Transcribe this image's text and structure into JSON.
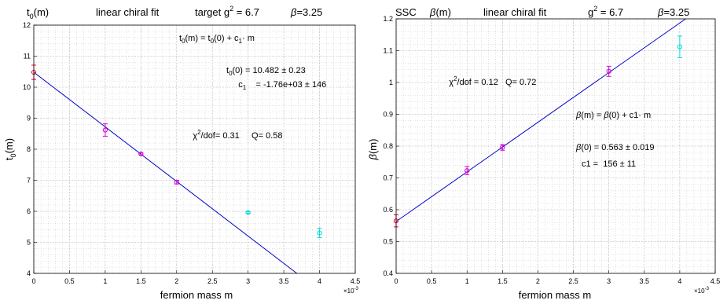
{
  "chart_data": [
    {
      "type": "scatter",
      "title_parts": [
        "t",
        "0",
        "(m)",
        "linear chiral fit",
        "target g",
        "2",
        " = 6.7",
        "β",
        "=3.25"
      ],
      "xlabel": "fermion mass  m",
      "ylabel_parts": [
        "t",
        "0",
        "(m)"
      ],
      "x_exponent": "×10",
      "x_exponent_power": "-3",
      "xlim": [
        0,
        4.5
      ],
      "ylim": [
        4,
        12
      ],
      "x_ticks": [
        0,
        0.5,
        1,
        1.5,
        2,
        2.5,
        3,
        3.5,
        4,
        4.5
      ],
      "x_tick_labels": [
        "0",
        "0.5",
        "1",
        "1.5",
        "2",
        "2.5",
        "3",
        "3.5",
        "4",
        "4.5"
      ],
      "y_ticks": [
        4,
        5,
        6,
        7,
        8,
        9,
        10,
        11,
        12
      ],
      "y_tick_labels": [
        "4",
        "5",
        "6",
        "7",
        "8",
        "9",
        "10",
        "11",
        "12"
      ],
      "grid": true,
      "minor_grid": true,
      "points": [
        {
          "x": 0,
          "y": 10.48,
          "err": 0.23,
          "color": "#e8002a"
        },
        {
          "x": 1,
          "y": 8.62,
          "err": 0.2,
          "color": "#d400d4"
        },
        {
          "x": 1.5,
          "y": 7.85,
          "err": 0.03,
          "color": "#d400d4"
        },
        {
          "x": 2,
          "y": 6.94,
          "err": 0.06,
          "color": "#d400d4"
        },
        {
          "x": 3,
          "y": 5.96,
          "err": 0.03,
          "color": "#00d8d8"
        },
        {
          "x": 4,
          "y": 5.3,
          "err": 0.15,
          "color": "#00d8d8"
        }
      ],
      "fit_line": {
        "intercept": 10.482,
        "slope": -1.76,
        "color": "#0000cc"
      },
      "annotations": {
        "formula": [
          "t",
          "0",
          "(m)  =  t",
          "0",
          "(0) + c",
          "1",
          "· m"
        ],
        "param1": [
          "t",
          "0",
          "(0) = 10.482 ± 0.23"
        ],
        "param2": [
          "c",
          "1",
          "    = -1.76e+03 ± 146"
        ],
        "chi": [
          "χ",
          "2",
          "/dof= 0.31     Q= 0.58"
        ]
      }
    },
    {
      "type": "scatter",
      "title_parts": [
        "SSC",
        "β",
        "(m)",
        "linear chiral fit",
        "g",
        "2",
        " = 6.7",
        "β",
        "=3.25"
      ],
      "xlabel": "fermion mass  m",
      "ylabel_parts": [
        "β",
        "(m)"
      ],
      "x_exponent": "×10",
      "x_exponent_power": "-3",
      "xlim": [
        0,
        4.5
      ],
      "ylim": [
        0.4,
        1.2
      ],
      "x_ticks": [
        0,
        0.5,
        1,
        1.5,
        2,
        2.5,
        3,
        3.5,
        4,
        4.5
      ],
      "x_tick_labels": [
        "0",
        "0.5",
        "1",
        "1.5",
        "2",
        "2.5",
        "3",
        "3.5",
        "4",
        "4.5"
      ],
      "y_ticks": [
        0.4,
        0.5,
        0.6,
        0.7,
        0.8,
        0.9,
        1.0,
        1.1,
        1.2
      ],
      "y_tick_labels": [
        "0.4",
        "0.5",
        "0.6",
        "0.7",
        "0.8",
        "0.9",
        "1",
        "1.1",
        "1.2"
      ],
      "grid": true,
      "minor_grid": true,
      "points": [
        {
          "x": 0,
          "y": 0.565,
          "err": 0.019,
          "color": "#e8002a"
        },
        {
          "x": 1,
          "y": 0.723,
          "err": 0.013,
          "color": "#d400d4"
        },
        {
          "x": 1.5,
          "y": 0.796,
          "err": 0.009,
          "color": "#d400d4"
        },
        {
          "x": 3,
          "y": 1.035,
          "err": 0.016,
          "color": "#d400d4"
        },
        {
          "x": 4,
          "y": 1.112,
          "err": 0.034,
          "color": "#00d8d8"
        }
      ],
      "fit_line": {
        "intercept": 0.563,
        "slope": 0.156,
        "color": "#0000cc"
      },
      "annotations": {
        "chi": [
          "χ",
          "2",
          "/dof = 0.12   Q= 0.72"
        ],
        "formula": [
          "β",
          "(m) = ",
          "β",
          "(0) + c1· m"
        ],
        "param1": [
          "β",
          "(0) = 0.563 ± 0.019"
        ],
        "param2": [
          "c1 =  156 ± 11"
        ]
      }
    }
  ]
}
